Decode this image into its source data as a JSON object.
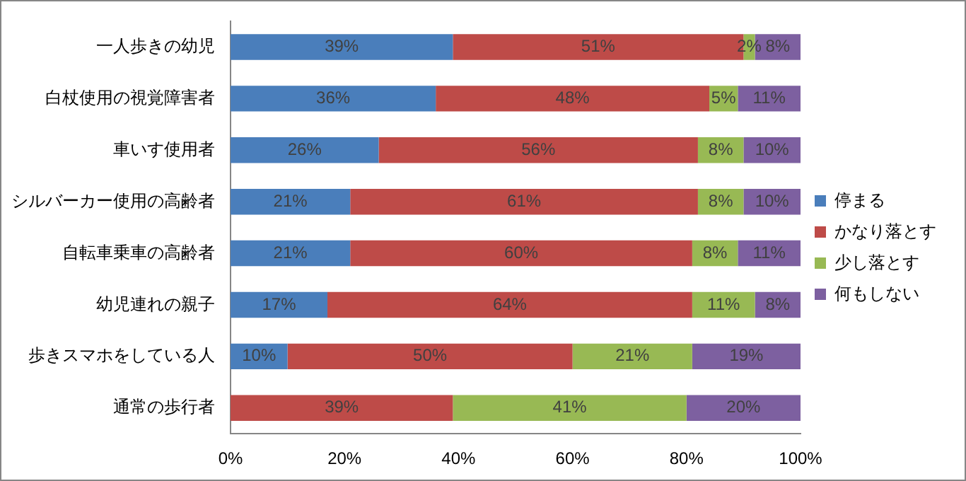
{
  "chart_data": {
    "type": "bar",
    "orientation": "horizontal",
    "stacked": true,
    "categories": [
      "一人歩きの幼児",
      "白杖使用の視覚障害者",
      "車いす使用者",
      "シルバーカー使用の高齢者",
      "自転車乗車の高齢者",
      "幼児連れの親子",
      "歩きスマホをしている人",
      "通常の歩行者"
    ],
    "series": [
      {
        "name": "停まる",
        "color": "#4a7ebb",
        "values": [
          39,
          36,
          26,
          21,
          21,
          17,
          10,
          0
        ],
        "value_labels": [
          "39%",
          "36%",
          "26%",
          "21%",
          "21%",
          "17%",
          "10%",
          null
        ]
      },
      {
        "name": "かなり落とす",
        "color": "#be4b48",
        "values": [
          51,
          48,
          56,
          61,
          60,
          64,
          50,
          39
        ],
        "value_labels": [
          "51%",
          "48%",
          "56%",
          "61%",
          "60%",
          "64%",
          "50%",
          "39%"
        ]
      },
      {
        "name": "少し落とす",
        "color": "#98b954",
        "values": [
          2,
          5,
          8,
          8,
          8,
          11,
          21,
          41
        ],
        "value_labels": [
          "2%",
          "5%",
          "8%",
          "8%",
          "8%",
          "11%",
          "21%",
          "41%"
        ]
      },
      {
        "name": "何もしない",
        "color": "#7d60a0",
        "values": [
          8,
          11,
          10,
          10,
          11,
          8,
          19,
          20
        ],
        "value_labels": [
          "8%",
          "11%",
          "10%",
          "10%",
          "11%",
          "8%",
          "19%",
          "20%"
        ]
      }
    ],
    "xlim": [
      0,
      100
    ],
    "xticks": [
      {
        "value": 0,
        "label": "0%"
      },
      {
        "value": 20,
        "label": "20%"
      },
      {
        "value": 40,
        "label": "40%"
      },
      {
        "value": 60,
        "label": "60%"
      },
      {
        "value": 80,
        "label": "80%"
      },
      {
        "value": 100,
        "label": "100%"
      }
    ],
    "grid": false,
    "legend": "right"
  }
}
